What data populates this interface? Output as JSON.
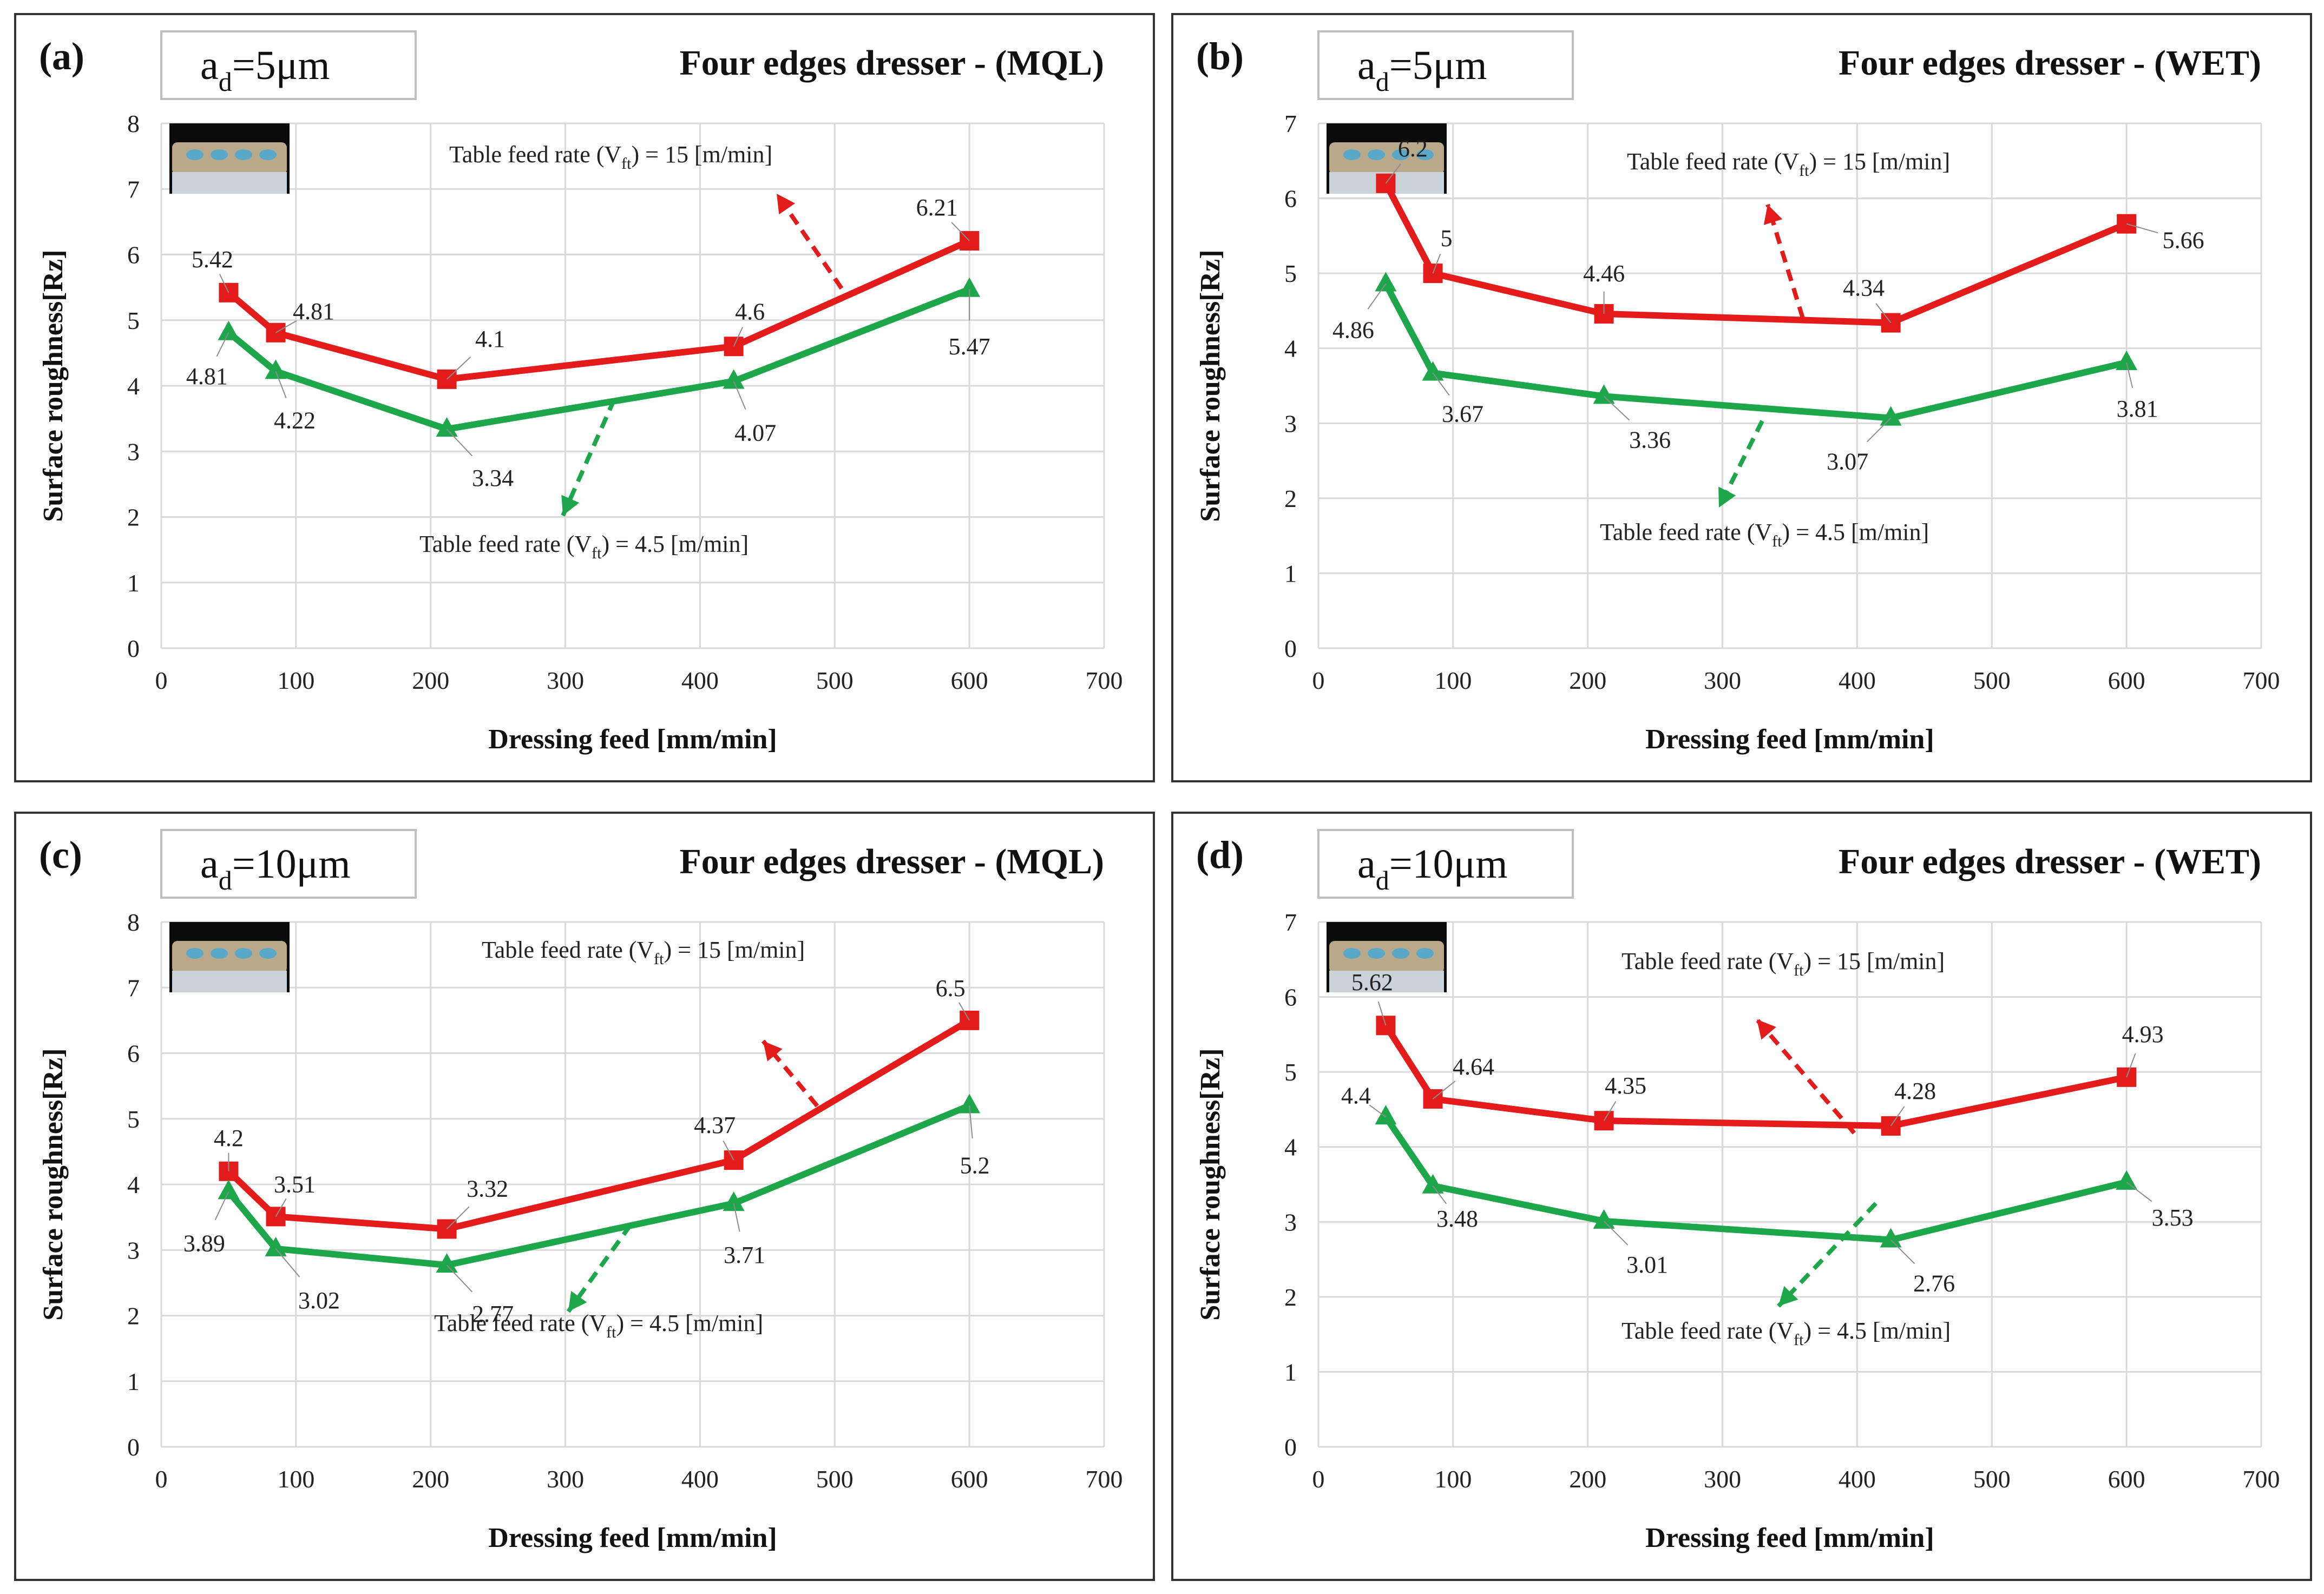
{
  "figure": {
    "chart_data": [
      {
        "type": "line",
        "panel_label": "(a)",
        "depth_label": {
          "base": "a",
          "sub": "d",
          "rest": "=5μm"
        },
        "title": "Four edges dresser - (MQL)",
        "xlabel": "Dressing feed [mm/min]",
        "ylabel": "Surface roughness[Rz]",
        "xlim": [
          0,
          700
        ],
        "ylim": [
          0,
          8
        ],
        "xticks": [
          0,
          100,
          200,
          300,
          400,
          500,
          600,
          700
        ],
        "yticks": [
          0,
          1,
          2,
          3,
          4,
          5,
          6,
          7,
          8
        ],
        "x": [
          50,
          85,
          212,
          425,
          600
        ],
        "series": [
          {
            "name": "Table feed rate (Vft) = 15 [m/min]",
            "color": "#e31b1b",
            "marker": "square",
            "values": [
              5.42,
              4.81,
              4.1,
              4.6,
              6.21
            ],
            "labels": [
              "5.42",
              "4.81",
              "4.1",
              "4.6",
              "6.21"
            ]
          },
          {
            "name": "Table feed rate (Vft) = 4.5 [m/min]",
            "color": "#1ea64b",
            "marker": "triangle",
            "values": [
              4.81,
              4.22,
              3.34,
              4.07,
              5.47
            ],
            "labels": [
              "4.81",
              "4.22",
              "3.34",
              "4.07",
              "5.47"
            ]
          }
        ],
        "annotations": {
          "red": {
            "pre": "Table feed rate (V",
            "sub": "ft",
            "post": ") = 15 [m/min]"
          },
          "green": {
            "pre": "Table feed rate (V",
            "sub": "ft",
            "post": ") = 4.5 [m/min]"
          }
        }
      },
      {
        "type": "line",
        "panel_label": "(b)",
        "depth_label": {
          "base": "a",
          "sub": "d",
          "rest": "=5μm"
        },
        "title": "Four edges dresser - (WET)",
        "xlabel": "Dressing feed [mm/min]",
        "ylabel": "Surface roughness[Rz]",
        "xlim": [
          0,
          700
        ],
        "ylim": [
          0,
          7
        ],
        "xticks": [
          0,
          100,
          200,
          300,
          400,
          500,
          600,
          700
        ],
        "yticks": [
          0,
          1,
          2,
          3,
          4,
          5,
          6,
          7
        ],
        "x": [
          50,
          85,
          212,
          425,
          600
        ],
        "series": [
          {
            "name": "Table feed rate (Vft) = 15 [m/min]",
            "color": "#e31b1b",
            "marker": "square",
            "values": [
              6.2,
              5,
              4.46,
              4.34,
              5.66
            ],
            "labels": [
              "6.2",
              "5",
              "4.46",
              "4.34",
              "5.66"
            ]
          },
          {
            "name": "Table feed rate (Vft) = 4.5 [m/min]",
            "color": "#1ea64b",
            "marker": "triangle",
            "values": [
              4.86,
              3.67,
              3.36,
              3.07,
              3.81
            ],
            "labels": [
              "4.86",
              "3.67",
              "3.36",
              "3.07",
              "3.81"
            ]
          }
        ],
        "annotations": {
          "red": {
            "pre": "Table feed rate (V",
            "sub": "ft",
            "post": ") = 15 [m/min]"
          },
          "green": {
            "pre": "Table feed rate (V",
            "sub": "ft",
            "post": ") = 4.5 [m/min]"
          }
        }
      },
      {
        "type": "line",
        "panel_label": "(c)",
        "depth_label": {
          "base": "a",
          "sub": "d",
          "rest": "=10μm"
        },
        "title": "Four edges dresser - (MQL)",
        "xlabel": "Dressing feed [mm/min]",
        "ylabel": "Surface roughness[Rz]",
        "xlim": [
          0,
          700
        ],
        "ylim": [
          0,
          8
        ],
        "xticks": [
          0,
          100,
          200,
          300,
          400,
          500,
          600,
          700
        ],
        "yticks": [
          0,
          1,
          2,
          3,
          4,
          5,
          6,
          7,
          8
        ],
        "x": [
          50,
          85,
          212,
          425,
          600
        ],
        "series": [
          {
            "name": "Table feed rate (Vft) = 15 [m/min]",
            "color": "#e31b1b",
            "marker": "square",
            "values": [
              4.2,
              3.51,
              3.32,
              4.37,
              6.5
            ],
            "labels": [
              "4.2",
              "3.51",
              "3.32",
              "4.37",
              "6.5"
            ]
          },
          {
            "name": "Table feed rate (Vft) = 4.5 [m/min]",
            "color": "#1ea64b",
            "marker": "triangle",
            "values": [
              3.89,
              3.02,
              2.77,
              3.71,
              5.2
            ],
            "labels": [
              "3.89",
              "3.02",
              "2.77",
              "3.71",
              "5.2"
            ]
          }
        ],
        "annotations": {
          "red": {
            "pre": "Table feed rate (V",
            "sub": "ft",
            "post": ") = 15 [m/min]"
          },
          "green": {
            "pre": "Table feed rate (V",
            "sub": "ft",
            "post": ") = 4.5 [m/min]"
          }
        }
      },
      {
        "type": "line",
        "panel_label": "(d)",
        "depth_label": {
          "base": "a",
          "sub": "d",
          "rest": "=10μm"
        },
        "title": "Four edges dresser - (WET)",
        "xlabel": "Dressing feed [mm/min]",
        "ylabel": "Surface roughness[Rz]",
        "xlim": [
          0,
          700
        ],
        "ylim": [
          0,
          7
        ],
        "xticks": [
          0,
          100,
          200,
          300,
          400,
          500,
          600,
          700
        ],
        "yticks": [
          0,
          1,
          2,
          3,
          4,
          5,
          6,
          7
        ],
        "x": [
          50,
          85,
          212,
          425,
          600
        ],
        "series": [
          {
            "name": "Table feed rate (Vft) = 15 [m/min]",
            "color": "#e31b1b",
            "marker": "square",
            "values": [
              5.62,
              4.64,
              4.35,
              4.28,
              4.93
            ],
            "labels": [
              "5.62",
              "4.64",
              "4.35",
              "4.28",
              "4.93"
            ]
          },
          {
            "name": "Table feed rate (Vft) = 4.5 [m/min]",
            "color": "#1ea64b",
            "marker": "triangle",
            "values": [
              4.4,
              3.48,
              3.01,
              2.76,
              3.53
            ],
            "labels": [
              "4.4",
              "3.48",
              "3.01",
              "2.76",
              "3.53"
            ]
          }
        ],
        "annotations": {
          "red": {
            "pre": "Table feed rate (V",
            "sub": "ft",
            "post": ") = 15 [m/min]"
          },
          "green": {
            "pre": "Table feed rate (V",
            "sub": "ft",
            "post": ") = 4.5 [m/min]"
          }
        }
      }
    ]
  },
  "chart_data": [
    {
      "type": "line",
      "title": "Four edges dresser - (MQL)",
      "x": [
        50,
        85,
        212,
        425,
        600
      ],
      "series": [
        {
          "name": "Table feed rate (Vft) = 15 [m/min]",
          "values": [
            5.42,
            4.81,
            4.1,
            4.6,
            6.21
          ]
        },
        {
          "name": "Table feed rate (Vft) = 4.5 [m/min]",
          "values": [
            4.81,
            4.22,
            3.34,
            4.07,
            5.47
          ]
        }
      ]
    },
    {
      "type": "line",
      "title": "Four edges dresser - (WET)",
      "x": [
        50,
        85,
        212,
        425,
        600
      ],
      "series": [
        {
          "name": "Table feed rate (Vft) = 15 [m/min]",
          "values": [
            6.2,
            5,
            4.46,
            4.34,
            5.66
          ]
        },
        {
          "name": "Table feed rate (Vft) = 4.5 [m/min]",
          "values": [
            4.86,
            3.67,
            3.36,
            3.07,
            3.81
          ]
        }
      ]
    },
    {
      "type": "line",
      "title": "Four edges dresser - (MQL)",
      "x": [
        50,
        85,
        212,
        425,
        600
      ],
      "series": [
        {
          "name": "Table feed rate (Vft) = 15 [m/min]",
          "values": [
            4.2,
            3.51,
            3.32,
            4.37,
            6.5
          ]
        },
        {
          "name": "Table feed rate (Vft) = 4.5 [m/min]",
          "values": [
            3.89,
            3.02,
            2.77,
            3.71,
            5.2
          ]
        }
      ]
    },
    {
      "type": "line",
      "title": "Four edges dresser - (WET)",
      "x": [
        50,
        85,
        212,
        425,
        600
      ],
      "series": [
        {
          "name": "Table feed rate (Vft) = 15 [m/min]",
          "values": [
            5.62,
            4.64,
            4.35,
            4.28,
            4.93
          ]
        },
        {
          "name": "Table feed rate (Vft) = 4.5 [m/min]",
          "values": [
            4.4,
            3.48,
            3.01,
            2.76,
            3.53
          ]
        }
      ]
    }
  ]
}
